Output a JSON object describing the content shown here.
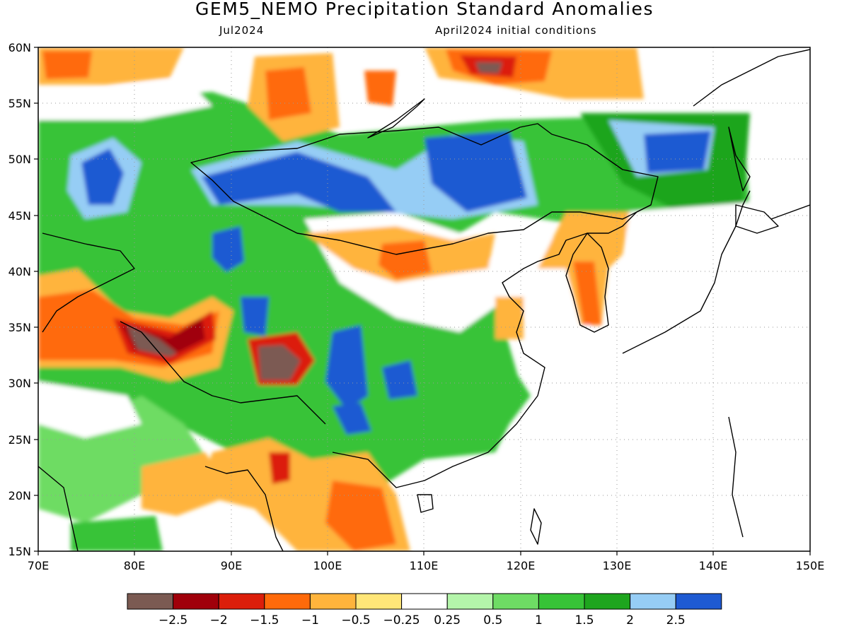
{
  "title": "GEM5_NEMO Precipitation Standard Anomalies",
  "subtitle_left": "Jul2024",
  "subtitle_right": "April2024 initial conditions",
  "map": {
    "lon_range": [
      70,
      150
    ],
    "lat_range": [
      15,
      60
    ],
    "x_ticks": [
      "70E",
      "80E",
      "90E",
      "100E",
      "110E",
      "120E",
      "130E",
      "140E",
      "150E"
    ],
    "y_ticks": [
      "15N",
      "20N",
      "25N",
      "30N",
      "35N",
      "40N",
      "45N",
      "50N",
      "55N",
      "60N"
    ],
    "gridlines": "dotted"
  },
  "colorbar": {
    "labels": [
      "−2.5",
      "−2",
      "−1.5",
      "−1",
      "−0.5",
      "−0.25",
      "0.25",
      "0.5",
      "1",
      "1.5",
      "2",
      "2.5"
    ],
    "colors": [
      "#7b5a52",
      "#a0000a",
      "#dc1e0a",
      "#ff6a0a",
      "#ffb43c",
      "#ffe678",
      "#ffffff",
      "#b4f5aa",
      "#6edc64",
      "#37c337",
      "#1ea51e",
      "#96cdf5",
      "#1e5ad2"
    ]
  },
  "colors": {
    "strong_dry": "#7b5a52",
    "dry": "#dc1e0a",
    "moderate_dry": "#ff6a0a",
    "light_dry": "#ffb43c",
    "near_normal": "#ffffff",
    "light_wet": "#b4f5aa",
    "wet": "#37c337",
    "very_wet": "#96cdf5",
    "extreme_wet": "#1e5ad2"
  }
}
